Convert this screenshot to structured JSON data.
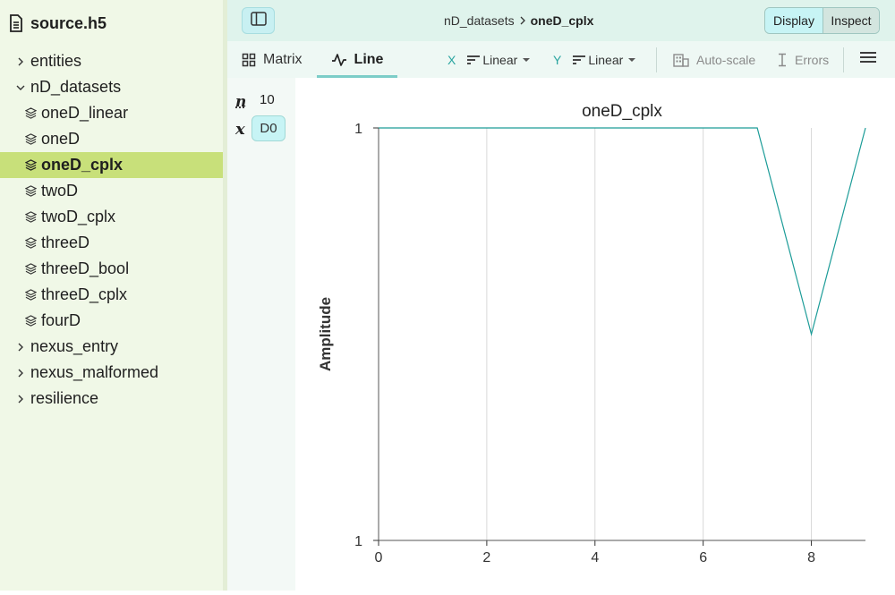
{
  "sidebar": {
    "file_name": "source.h5",
    "items": [
      {
        "label": "entities",
        "kind": "group",
        "expanded": false
      },
      {
        "label": "nD_datasets",
        "kind": "group",
        "expanded": true
      },
      {
        "label": "oneD_linear",
        "kind": "dataset"
      },
      {
        "label": "oneD",
        "kind": "dataset"
      },
      {
        "label": "oneD_cplx",
        "kind": "dataset",
        "selected": true
      },
      {
        "label": "twoD",
        "kind": "dataset"
      },
      {
        "label": "twoD_cplx",
        "kind": "dataset"
      },
      {
        "label": "threeD",
        "kind": "dataset"
      },
      {
        "label": "threeD_bool",
        "kind": "dataset"
      },
      {
        "label": "threeD_cplx",
        "kind": "dataset"
      },
      {
        "label": "fourD",
        "kind": "dataset"
      },
      {
        "label": "nexus_entry",
        "kind": "group",
        "expanded": false
      },
      {
        "label": "nexus_malformed",
        "kind": "group",
        "expanded": false
      },
      {
        "label": "resilience",
        "kind": "group",
        "expanded": false
      }
    ]
  },
  "header": {
    "breadcrumb_parent": "nD_datasets",
    "breadcrumb_current": "oneD_cplx",
    "mode_display": "Display",
    "mode_inspect": "Inspect"
  },
  "toolbar": {
    "tab_matrix": "Matrix",
    "tab_line": "Line",
    "x_letter": "X",
    "x_scale": "Linear",
    "y_letter": "Y",
    "y_scale": "Linear",
    "autoscale": "Auto-scale",
    "errors": "Errors"
  },
  "dims": {
    "n_label": "n",
    "n_value": "10",
    "x_label": "x",
    "x_dim": "D0"
  },
  "colors": {
    "accent": "#2aa5a0",
    "line": "#1c9c98",
    "selected": "#c8e07a",
    "sidebar_bg": "#f0f8e7"
  },
  "chart_data": {
    "type": "line",
    "title": "oneD_cplx",
    "xlabel": "",
    "ylabel": "Amplitude",
    "xlim": [
      0,
      9
    ],
    "x_ticks": [
      "0",
      "2",
      "4",
      "6",
      "8"
    ],
    "y_ticks": [
      "1",
      "1"
    ],
    "x": [
      0,
      1,
      2,
      3,
      4,
      5,
      6,
      7,
      8,
      9
    ],
    "values": [
      1,
      1,
      1,
      1,
      1,
      1,
      1,
      1,
      0.5,
      1
    ],
    "grid": "vertical"
  }
}
